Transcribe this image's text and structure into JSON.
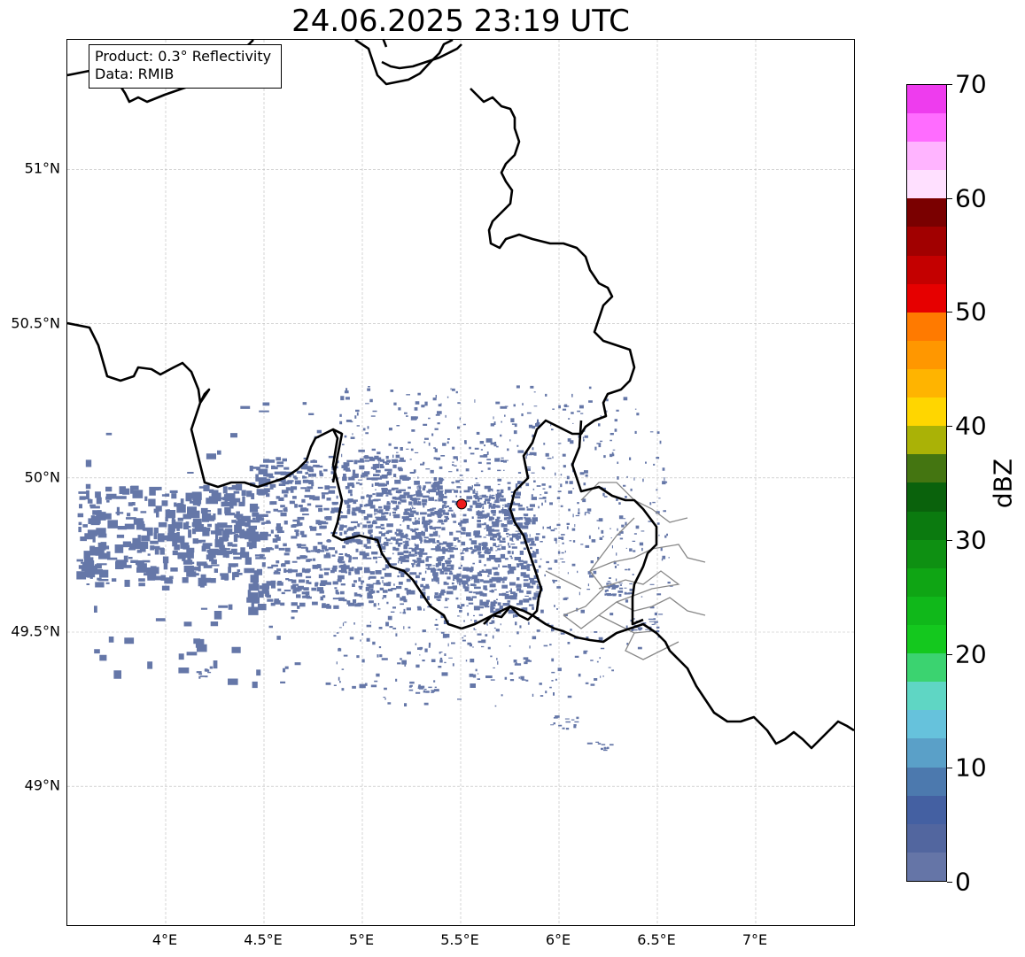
{
  "title": "24.06.2025 23:19 UTC",
  "info": {
    "product": "Product: 0.3° Reflectivity",
    "data": "Data: RMIB"
  },
  "map": {
    "lon_range": [
      3.5,
      7.5
    ],
    "lat_range": [
      48.55,
      51.42
    ],
    "lat_ticks": [
      {
        "value": 51.0,
        "label": "51°N"
      },
      {
        "value": 50.5,
        "label": "50.5°N"
      },
      {
        "value": 50.0,
        "label": "50°N"
      },
      {
        "value": 49.5,
        "label": "49.5°N"
      },
      {
        "value": 49.0,
        "label": "49°N"
      }
    ],
    "lon_ticks": [
      {
        "value": 4.0,
        "label": "4°E"
      },
      {
        "value": 4.5,
        "label": "4.5°E"
      },
      {
        "value": 5.0,
        "label": "5°E"
      },
      {
        "value": 5.5,
        "label": "5.5°E"
      },
      {
        "value": 6.0,
        "label": "6°E"
      },
      {
        "value": 6.5,
        "label": "6.5°E"
      },
      {
        "value": 7.0,
        "label": "7°E"
      }
    ],
    "radar_site": {
      "lon": 5.505,
      "lat": 49.915,
      "color": "#ee1c1c"
    },
    "echo_color": "#6577a8",
    "border_color": "#000000",
    "admin_border_color": "#888888"
  },
  "colorbar": {
    "label": "dBZ",
    "min": 0,
    "max": 70,
    "step": 2.5,
    "ticks": [
      {
        "value": 0,
        "label": "0"
      },
      {
        "value": 10,
        "label": "10"
      },
      {
        "value": 20,
        "label": "20"
      },
      {
        "value": 30,
        "label": "30"
      },
      {
        "value": 40,
        "label": "40"
      },
      {
        "value": 50,
        "label": "50"
      },
      {
        "value": 60,
        "label": "60"
      },
      {
        "value": 70,
        "label": "70"
      }
    ],
    "colors": [
      "#6575a7",
      "#52669f",
      "#4460a2",
      "#4c79ae",
      "#5aa0c8",
      "#66c2dc",
      "#5fd6c4",
      "#3bd370",
      "#14c81e",
      "#10b81a",
      "#0fa514",
      "#0e9012",
      "#0b7a0f",
      "#0a620c",
      "#447511",
      "#aab206",
      "#ffd600",
      "#ffb400",
      "#ff9700",
      "#ff7a00",
      "#e60000",
      "#c40000",
      "#a10000",
      "#7a0000",
      "#ffe0ff",
      "#ffb4ff",
      "#ff6cff",
      "#ee3cee"
    ]
  }
}
